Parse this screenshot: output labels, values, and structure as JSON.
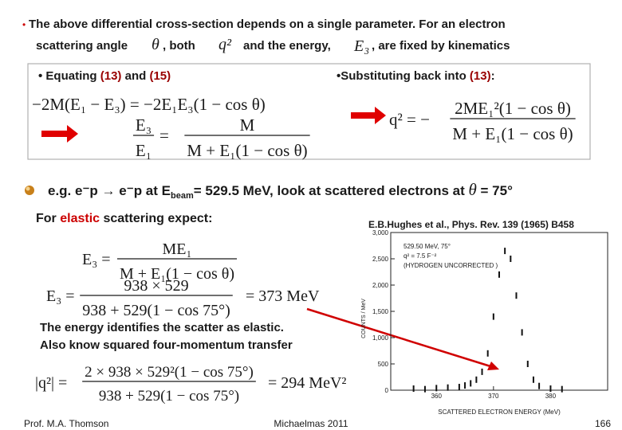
{
  "intro": {
    "bullet": "•",
    "line1": "The above differential cross-section depends on a single parameter.  For an electron",
    "scattering_angle": "scattering angle",
    "theta": "θ",
    "both": ", both",
    "q2": "q²",
    "and_energy": "and the energy,",
    "e3": "E₃",
    "kinematics": ",  are fixed by kinematics"
  },
  "box": {
    "left_heading": {
      "text1": "• Equating  ",
      "ref1": "(13)",
      "text2": " and ",
      "ref2": "(15)"
    },
    "eq1": "−2M(E₁ − E₃) = −2E₁E₃(1 − cos θ)",
    "eq2": {
      "num_left": "E₃",
      "den_left": "E₁",
      "equals": "=",
      "num_right": "M",
      "den_right": "M + E₁(1 − cos θ)"
    },
    "right_heading": {
      "text1": "•Substituting back into ",
      "ref": "(13)",
      "text2": ":"
    },
    "eq3": {
      "lhs": "q² = −",
      "num": "2ME₁²(1 − cos θ)",
      "den": "M + E₁(1 − cos θ)"
    }
  },
  "example": {
    "text1": "e.g. e⁻p → e⁻p  at  E",
    "sub": "beam",
    "text2": "= 529.5 MeV, look at scattered electrons at ",
    "theta": "θ",
    "text3": " = 75°"
  },
  "elastic": {
    "text1": "For ",
    "highlight": "elastic",
    "text2": " scattering expect:"
  },
  "eq4": {
    "lhs": "E₃ =",
    "num": "ME₁",
    "den": "M + E₁(1 − cos θ)"
  },
  "eq5": {
    "lhs": "E₃ =",
    "num": "938 × 529",
    "den": "938 + 529(1 − cos 75°)",
    "rhs": "= 373 MeV"
  },
  "conclusion": {
    "line1": "The energy identifies the scatter as elastic.",
    "line2": "Also know squared four-momentum transfer"
  },
  "eq6": {
    "lhs": "|q²| =",
    "num": "2 × 938 × 529²(1 − cos 75°)",
    "den": "938 + 529(1 − cos 75°)",
    "rhs": "= 294 MeV²"
  },
  "figure": {
    "reference": "E.B.Hughes et al., Phys. Rev. 139 (1965) B458",
    "annotation": [
      "529.50 MeV, 75°",
      "q² = 7.5 F⁻²",
      "(HYDROGEN UNCORRECTED )"
    ],
    "x_label": "SCATTERED ELECTRON ENERGY (MeV)",
    "y_label": "COUNTS / MeV",
    "xlim": [
      352,
      390
    ],
    "ylim": [
      0,
      3000
    ],
    "xticks": [
      360,
      370,
      380
    ],
    "yticks": [
      0,
      500,
      {
        "value": 1000,
        "label": "1,000"
      },
      {
        "value": 1500,
        "label": "1,500"
      },
      {
        "value": 2000,
        "label": "2,000"
      },
      {
        "value": 2500,
        "label": "2,500"
      },
      {
        "value": 3000,
        "label": "3,000"
      }
    ],
    "x": [
      356,
      358,
      360,
      362,
      364,
      365,
      366,
      367,
      368,
      369,
      370,
      371,
      372,
      373,
      374,
      375,
      376,
      377,
      378,
      380,
      382
    ],
    "values": [
      30,
      20,
      40,
      50,
      60,
      90,
      130,
      200,
      350,
      700,
      1400,
      2200,
      2650,
      2500,
      1800,
      1100,
      500,
      200,
      80,
      30,
      20
    ]
  },
  "footer": {
    "author": "Prof. M.A. Thomson",
    "term": "Michaelmas 2011",
    "page": 166
  }
}
